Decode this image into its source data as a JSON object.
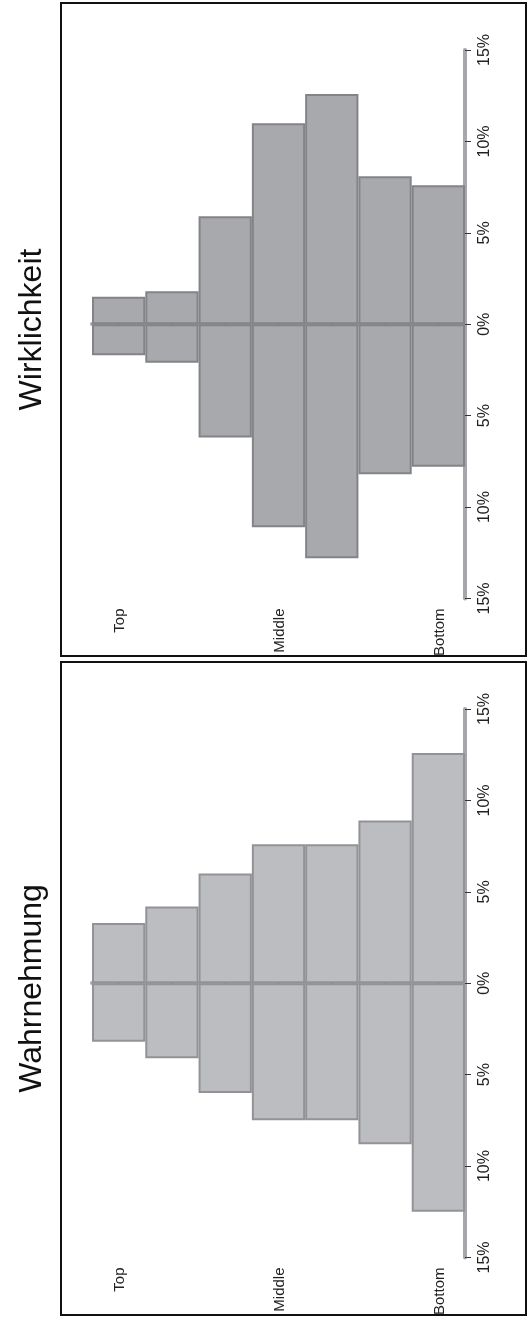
{
  "chart_data": [
    {
      "type": "bar",
      "stacked": true,
      "title": "Wahrnehmung",
      "categories": [
        "Top",
        null,
        null,
        "Middle",
        null,
        null,
        "Bottom"
      ],
      "series": [
        {
          "color": "#bcbdc1",
          "values": [
            -3.2,
            -4.1,
            -6.0,
            -7.5,
            -7.5,
            -8.8,
            -12.5
          ]
        },
        {
          "color": "#bcbdc1",
          "values": [
            3.3,
            4.2,
            6.0,
            7.6,
            7.6,
            8.9,
            12.6
          ]
        }
      ],
      "ylim": [
        -15,
        15
      ],
      "yticks": [
        {
          "value": -15,
          "label": "15%"
        },
        {
          "value": -10,
          "label": "10%"
        },
        {
          "value": -5,
          "label": "5%"
        },
        {
          "value": 0,
          "label": "0%"
        },
        {
          "value": 5,
          "label": "5%"
        },
        {
          "value": 10,
          "label": "10%"
        },
        {
          "value": 15,
          "label": "15%"
        }
      ]
    },
    {
      "type": "bar",
      "stacked": true,
      "title": "Wirklichkeit",
      "categories": [
        "Top",
        null,
        null,
        "Middle",
        null,
        null,
        "Bottom"
      ],
      "series": [
        {
          "color": "#a8a9ad",
          "values": [
            -1.7,
            -2.1,
            -6.2,
            -11.1,
            -12.8,
            -8.2,
            -7.8
          ]
        },
        {
          "color": "#a8a9ad",
          "values": [
            1.5,
            1.8,
            5.9,
            11.0,
            12.6,
            8.1,
            7.6
          ]
        }
      ],
      "ylim": [
        -15,
        15
      ],
      "yticks": [
        {
          "value": -15,
          "label": "15%"
        },
        {
          "value": -10,
          "label": "10%"
        },
        {
          "value": -5,
          "label": "5%"
        },
        {
          "value": 0,
          "label": "0%"
        },
        {
          "value": 5,
          "label": "5%"
        },
        {
          "value": 10,
          "label": "10%"
        },
        {
          "value": 15,
          "label": "15%"
        }
      ]
    }
  ]
}
